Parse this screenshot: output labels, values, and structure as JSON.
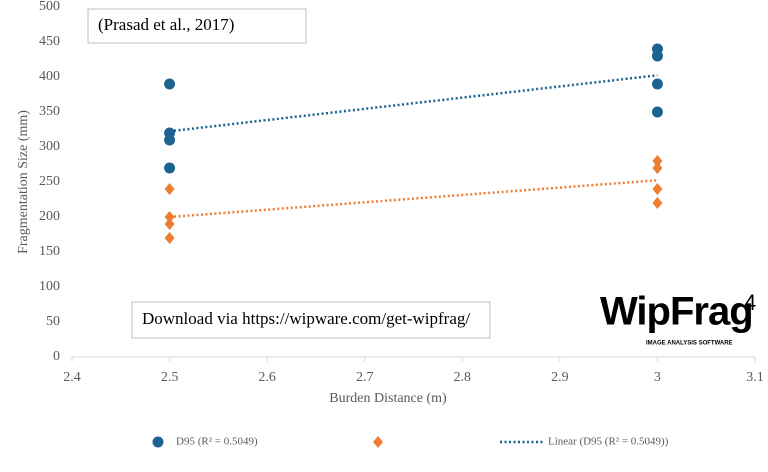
{
  "chart_data": {
    "type": "scatter",
    "x_label": "Burden Distance (m)",
    "y_label": "Fragmentation Size (mm)",
    "xlim": [
      2.4,
      3.1
    ],
    "xticks": [
      2.4,
      2.5,
      2.6,
      2.7,
      2.8,
      2.9,
      3,
      3.1
    ],
    "ylim": [
      0,
      500
    ],
    "yticks": [
      0,
      50,
      100,
      150,
      200,
      250,
      300,
      350,
      400,
      450,
      500
    ],
    "grid": false,
    "series": [
      {
        "name": "D95 (R² = 0.5049)",
        "color": "#1d6391",
        "marker": "circle",
        "x": [
          2.5,
          2.5,
          2.5,
          2.5,
          3,
          3,
          3,
          3
        ],
        "values": [
          390,
          320,
          310,
          270,
          440,
          430,
          390,
          350
        ],
        "trendline": "linear",
        "trendline_label": "Linear (D95 (R² = 0.5049))"
      },
      {
        "color": "#ed7d31",
        "marker": "diamond",
        "x": [
          2.5,
          2.5,
          2.5,
          2.5,
          3,
          3,
          3,
          3
        ],
        "values": [
          240,
          200,
          190,
          170,
          280,
          270,
          240,
          220
        ],
        "trendline": "linear"
      }
    ],
    "annotations": [
      "(Prasad et al., 2017)",
      "Download via https://wipware.com/get-wipfrag/"
    ],
    "logo": {
      "text": "WipFrag",
      "superscript": "4",
      "tagline": "IMAGE ANALYSIS SOFTWARE"
    }
  }
}
